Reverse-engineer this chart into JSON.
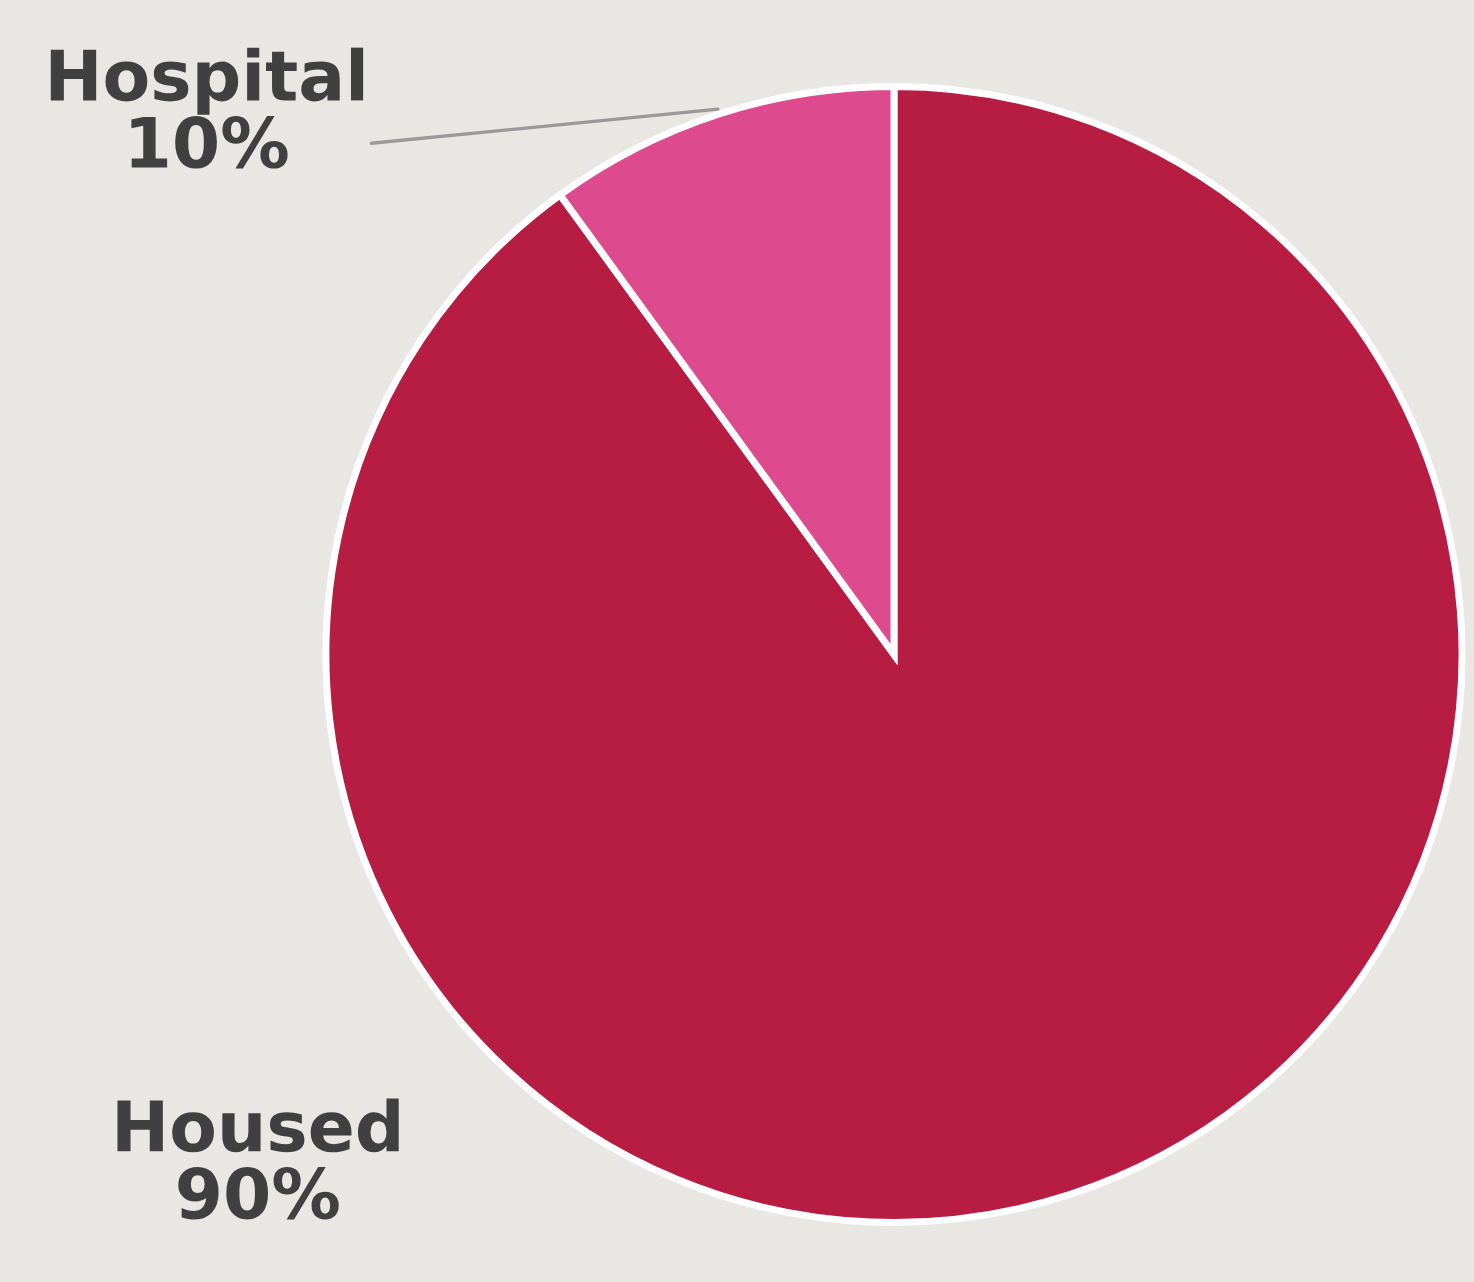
{
  "chart_data": {
    "type": "pie",
    "categories": [
      "Housed",
      "Hospital"
    ],
    "values": [
      90,
      10
    ],
    "colors": [
      "#b71c42",
      "#de4a8e"
    ],
    "value_labels": [
      "90%",
      "10%"
    ]
  }
}
